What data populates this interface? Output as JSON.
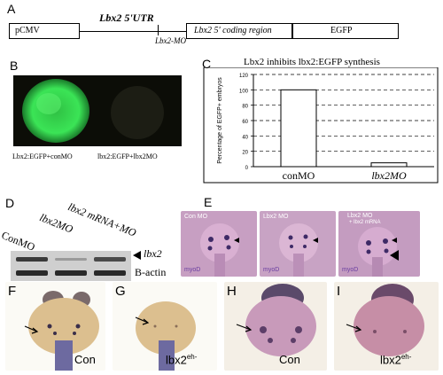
{
  "panels": {
    "A": "A",
    "B": "B",
    "C": "C",
    "D": "D",
    "E": "E",
    "F": "F",
    "G": "G",
    "H": "H",
    "I": "I"
  },
  "construct": {
    "pcmv": "pCMV",
    "utr": "Lbx2 5'UTR",
    "coding": "Lbx2 5' coding region",
    "egfp": "EGFP",
    "mo": "Lbx2-MO"
  },
  "fluorescence": {
    "left_label": "Lbx2:EGFP+conMO",
    "right_label": "lbx2:EGFP+lbx2MO"
  },
  "chart_data": {
    "type": "bar",
    "title": "Lbx2 inhibits lbx2:EGFP synthesis",
    "ylabel": "Percentage of EGFP+ embryos",
    "categories": [
      "conMO",
      "lbx2MO"
    ],
    "values": [
      100,
      5
    ],
    "ylim": [
      0,
      120
    ],
    "yticks": [
      "0",
      "20",
      "40",
      "60",
      "80",
      "100",
      "120"
    ],
    "grid": "dashed horizontal"
  },
  "western": {
    "col_labels": [
      "ConMO",
      "lbx2MO",
      "lbx2 mRNA+MO"
    ],
    "row_labels": [
      "lbx2",
      "B-actin"
    ]
  },
  "insitu_E": {
    "titles": [
      "Con MO",
      "Lbx2 MO",
      "Lbx2 MO"
    ],
    "subtitle": "+ lbx2 mRNA",
    "probe": "myoD"
  },
  "embryos": {
    "F": "Con",
    "G": "lbx2",
    "H": "Con",
    "I": "lbx2",
    "superscript": "eh-"
  },
  "colors": {
    "egfp_green": "#33e04a",
    "embryo_tan": "#d9b985",
    "embryo_purple": "#c9a0c6"
  }
}
